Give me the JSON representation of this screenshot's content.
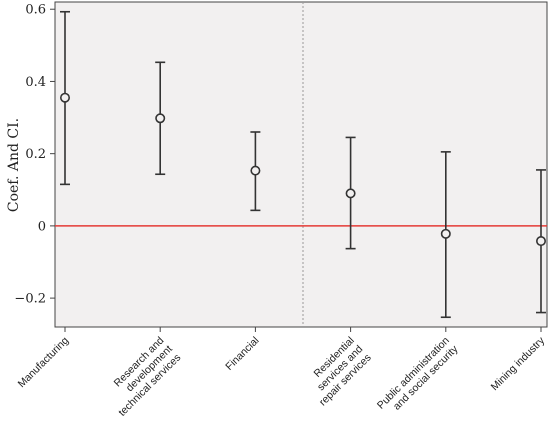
{
  "chart_data": {
    "type": "errorbar",
    "title": "",
    "xlabel": "",
    "ylabel": "Coef. And CI.",
    "ylim": [
      -0.28,
      0.62
    ],
    "yticks": [
      -0.2,
      0,
      0.2,
      0.4,
      0.6
    ],
    "ytick_labels": [
      "−0.2",
      "0",
      "0.2",
      "0.4",
      "0.6"
    ],
    "categories": [
      "Manufacturing",
      "Research and development technical services",
      "Financial",
      "Residential services and repair services",
      "Public administration and social security",
      "Mining industry"
    ],
    "category_lines": [
      [
        "Manufacturing"
      ],
      [
        "Research and",
        "development",
        "technical services"
      ],
      [
        "Financial"
      ],
      [
        "Residential",
        "services and",
        "repair services"
      ],
      [
        "Public administration",
        "and social security"
      ],
      [
        "Mining industry"
      ]
    ],
    "coef": [
      0.355,
      0.298,
      0.153,
      0.09,
      -0.022,
      -0.042
    ],
    "ci_low": [
      0.115,
      0.143,
      0.043,
      -0.063,
      -0.253,
      -0.24
    ],
    "ci_high": [
      0.593,
      0.453,
      0.26,
      0.245,
      0.205,
      0.155
    ],
    "reference_line": {
      "y": 0,
      "color": "#e53935"
    },
    "divider_after_index": 2,
    "background_color": "#f2f0f0",
    "marker_color": "#333333",
    "grid": false
  }
}
